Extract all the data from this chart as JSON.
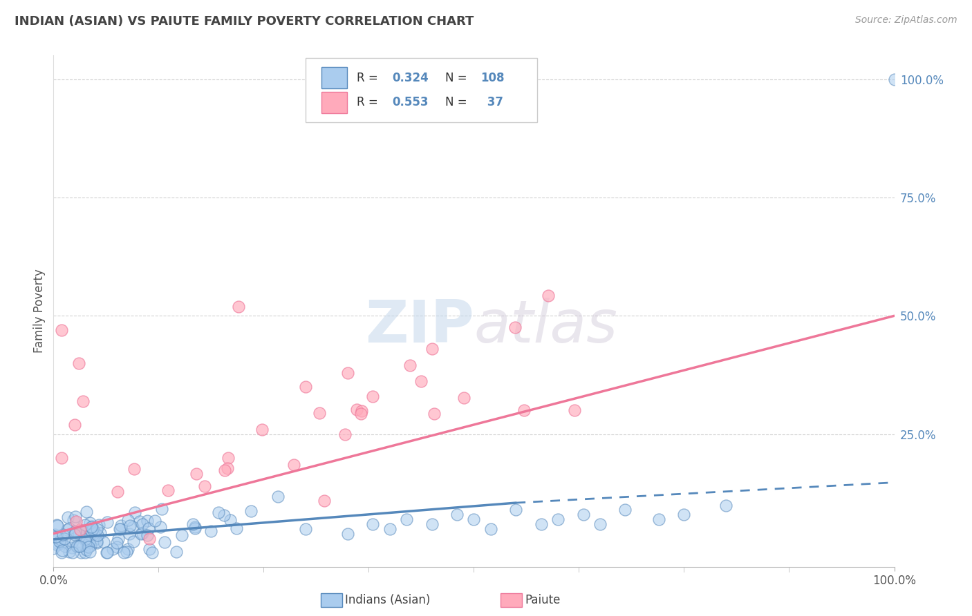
{
  "title": "INDIAN (ASIAN) VS PAIUTE FAMILY POVERTY CORRELATION CHART",
  "source_text": "Source: ZipAtlas.com",
  "ylabel": "Family Poverty",
  "y_tick_positions": [
    0.25,
    0.5,
    0.75,
    1.0
  ],
  "xlim": [
    0.0,
    1.0
  ],
  "ylim": [
    -0.03,
    1.05
  ],
  "blue_color": "#5588BB",
  "pink_color": "#EE7799",
  "blue_face": "#AACCEE",
  "pink_face": "#FFAABB",
  "blue_r": 0.324,
  "blue_n": 108,
  "pink_r": 0.553,
  "pink_n": 37,
  "background_color": "#FFFFFF",
  "grid_color": "#CCCCCC",
  "title_color": "#444444",
  "blue_line_solid_end": 0.55,
  "blue_line_start_y": 0.028,
  "blue_line_end_y_solid": 0.105,
  "blue_line_end_y_dash": 0.148,
  "pink_line_start_y": 0.04,
  "pink_line_end_x": 1.0,
  "pink_line_end_y": 0.5
}
